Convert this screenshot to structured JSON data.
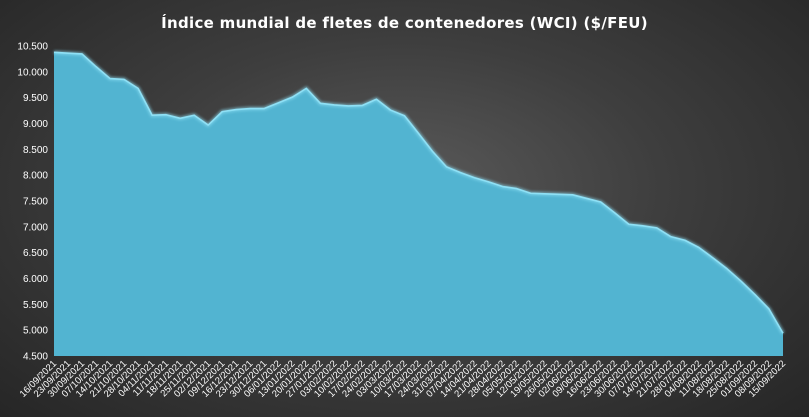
{
  "chart_data": {
    "type": "area",
    "title": "Índice mundial de fletes de contenedores (WCI) ($/FEU)",
    "xlabel": "",
    "ylabel": "",
    "ylim": [
      4500,
      10500
    ],
    "ytick_labels": [
      "4.500",
      "5.000",
      "5.500",
      "6.000",
      "6.500",
      "7.000",
      "7.500",
      "8.000",
      "8.500",
      "9.000",
      "9.500",
      "10.000",
      "10.500"
    ],
    "x": [
      "16/09/2021",
      "23/09/2021",
      "30/09/2021",
      "07/10/2021",
      "14/10/2021",
      "21/10/2021",
      "28/10/2021",
      "04/11/2021",
      "11/11/2021",
      "18/11/2021",
      "25/11/2021",
      "02/12/2021",
      "09/12/2021",
      "16/12/2021",
      "23/12/2021",
      "30/12/2021",
      "06/01/2022",
      "13/01/2022",
      "20/01/2022",
      "27/01/2022",
      "03/02/2022",
      "10/02/2022",
      "17/02/2022",
      "24/02/2022",
      "03/03/2022",
      "10/03/2022",
      "17/03/2022",
      "24/03/2022",
      "31/03/2022",
      "07/04/2022",
      "14/04/2022",
      "21/04/2022",
      "28/04/2022",
      "05/05/2022",
      "12/05/2022",
      "19/05/2022",
      "26/05/2022",
      "02/06/2022",
      "09/06/2022",
      "16/06/2022",
      "23/06/2022",
      "30/06/2022",
      "07/07/2022",
      "14/07/2022",
      "21/07/2022",
      "28/07/2022",
      "04/08/2022",
      "11/08/2022",
      "18/08/2022",
      "25/08/2022",
      "01/09/2022",
      "08/09/2022",
      "15/09/2022"
    ],
    "series": [
      {
        "values": [
          10377,
          10361,
          10346,
          10100,
          9870,
          9853,
          9680,
          9160,
          9170,
          9100,
          9160,
          8970,
          9230,
          9270,
          9290,
          9290,
          9400,
          9510,
          9680,
          9390,
          9360,
          9340,
          9350,
          9470,
          9260,
          9150,
          8810,
          8460,
          8160,
          8050,
          7950,
          7870,
          7780,
          7740,
          7650,
          7640,
          7630,
          7620,
          7550,
          7480,
          7270,
          7050,
          7020,
          6980,
          6810,
          6740,
          6600,
          6400,
          6190,
          5950,
          5690,
          5410,
          4940
        ]
      }
    ],
    "colors": {
      "fill": "#52b4d1",
      "line": "#8fe0f5"
    }
  }
}
